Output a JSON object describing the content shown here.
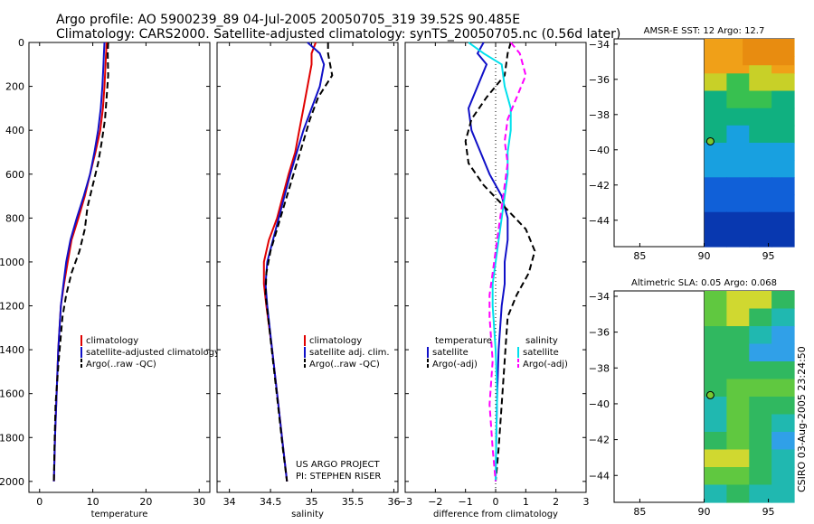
{
  "header": {
    "line1": "Argo profile: AO 5900239_89 04-Jul-2005 20050705_319 39.52S 90.485E",
    "line2": "Climatology: CARS2000. Satellite-adjusted climatology: synTS_20050705.nc (0.56d later)"
  },
  "side_label": "CSIRO 03-Aug-2005 23:24:50",
  "colors": {
    "red": "#e00000",
    "blue": "#1010c8",
    "black": "#000000",
    "cyan": "#00e0ec",
    "magenta": "#ff00ff"
  },
  "chart_data": [
    {
      "id": "temperature",
      "type": "line",
      "xlabel": "temperature",
      "ylabel": "",
      "xlim": [
        -2,
        32
      ],
      "ylim": [
        2050,
        0
      ],
      "xticks": [
        0,
        10,
        20,
        30
      ],
      "yticks": [
        0,
        200,
        400,
        600,
        800,
        1000,
        1200,
        1400,
        1600,
        1800,
        2000
      ],
      "series": [
        {
          "name": "climatology",
          "color": "red",
          "dash": false,
          "x": [
            12.6,
            12.5,
            12.4,
            12.2,
            11.9,
            11.4,
            10.5,
            9.5,
            8.5,
            7.3,
            6.0,
            5.3,
            4.6,
            4.0,
            3.5,
            3.2,
            2.9,
            2.7
          ],
          "y": [
            0,
            50,
            100,
            200,
            300,
            400,
            500,
            600,
            700,
            800,
            900,
            1000,
            1100,
            1200,
            1400,
            1600,
            1800,
            2000
          ]
        },
        {
          "name": "satellite-adjusted climatology",
          "color": "blue",
          "dash": false,
          "x": [
            12.2,
            12.1,
            12.0,
            11.8,
            11.5,
            11.0,
            10.3,
            9.5,
            8.3,
            7.0,
            5.8,
            5.0,
            4.5,
            4.0,
            3.5,
            3.2,
            2.9,
            2.7
          ],
          "y": [
            0,
            50,
            100,
            200,
            300,
            400,
            500,
            600,
            700,
            800,
            900,
            1000,
            1100,
            1200,
            1400,
            1600,
            1800,
            2000
          ]
        },
        {
          "name": "Argo(..raw -QC)",
          "color": "black",
          "dash": true,
          "x": [
            12.9,
            12.8,
            12.9,
            12.6,
            12.3,
            11.7,
            11.0,
            10.0,
            9.0,
            8.5,
            7.5,
            6.0,
            5.0,
            4.3,
            3.6,
            3.0,
            2.8,
            2.7
          ],
          "y": [
            0,
            50,
            150,
            250,
            350,
            450,
            550,
            650,
            750,
            850,
            950,
            1050,
            1150,
            1250,
            1450,
            1650,
            1850,
            2000
          ]
        }
      ],
      "legend": [
        "climatology",
        "satellite-adjusted climatology",
        "Argo(..raw -QC)"
      ]
    },
    {
      "id": "salinity",
      "type": "line",
      "xlabel": "salinity",
      "ylabel": "",
      "xlim": [
        33.85,
        36.05
      ],
      "ylim": [
        2050,
        0
      ],
      "xticks": [
        34,
        34.5,
        35,
        35.5,
        36
      ],
      "xtick_labels": [
        "34",
        "34.5",
        "35",
        "35.5",
        "36"
      ],
      "series": [
        {
          "name": "climatology",
          "color": "red",
          "dash": false,
          "x": [
            35.05,
            35.0,
            35.0,
            34.95,
            34.9,
            34.85,
            34.8,
            34.72,
            34.65,
            34.58,
            34.48,
            34.42,
            34.42,
            34.45,
            34.52,
            34.58,
            34.64,
            34.7
          ],
          "y": [
            0,
            50,
            100,
            200,
            300,
            400,
            500,
            600,
            700,
            800,
            900,
            1000,
            1100,
            1200,
            1400,
            1600,
            1800,
            2000
          ]
        },
        {
          "name": "satellite adj. clim.",
          "color": "blue",
          "dash": false,
          "x": [
            34.95,
            35.1,
            35.15,
            35.1,
            35.0,
            34.9,
            34.82,
            34.74,
            34.67,
            34.6,
            34.53,
            34.46,
            34.44,
            34.46,
            34.52,
            34.58,
            34.64,
            34.7
          ],
          "y": [
            0,
            50,
            100,
            200,
            300,
            400,
            500,
            600,
            700,
            800,
            900,
            1000,
            1100,
            1200,
            1400,
            1600,
            1800,
            2000
          ]
        },
        {
          "name": "Argo(..raw -QC)",
          "color": "black",
          "dash": true,
          "x": [
            35.2,
            35.2,
            35.25,
            35.08,
            34.98,
            34.9,
            34.82,
            34.74,
            34.66,
            34.58,
            34.5,
            34.45,
            34.44,
            34.47,
            34.53,
            34.59,
            34.65,
            34.7
          ],
          "y": [
            0,
            50,
            150,
            250,
            350,
            450,
            550,
            650,
            750,
            850,
            950,
            1050,
            1150,
            1250,
            1450,
            1650,
            1850,
            2000
          ]
        }
      ],
      "legend": [
        "climatology",
        "satellite adj. clim.",
        "Argo(..raw -QC)"
      ],
      "annotation": [
        "US ARGO PROJECT",
        "PI: STEPHEN RISER"
      ]
    },
    {
      "id": "difference",
      "type": "line",
      "xlabel": "difference from climatology",
      "ylabel": "",
      "xlim": [
        -3,
        3
      ],
      "ylim": [
        2050,
        0
      ],
      "xticks": [
        -3,
        -2,
        -1,
        0,
        1,
        2,
        3
      ],
      "series": [
        {
          "name": "temperature satellite",
          "color": "blue",
          "dash": false,
          "x": [
            -0.4,
            -0.6,
            -0.3,
            -0.6,
            -0.9,
            -0.8,
            -0.5,
            -0.2,
            0.2,
            0.4,
            0.4,
            0.3,
            0.3,
            0.2,
            0.1,
            0.05,
            0.02,
            0
          ],
          "y": [
            0,
            50,
            100,
            200,
            300,
            400,
            500,
            600,
            700,
            800,
            900,
            1000,
            1100,
            1200,
            1400,
            1600,
            1800,
            2000
          ]
        },
        {
          "name": "temperature Argo(-adj)",
          "color": "black",
          "dash": true,
          "x": [
            0.5,
            0.4,
            0.3,
            -0.3,
            -0.8,
            -1.0,
            -0.9,
            -0.4,
            0.3,
            1.0,
            1.3,
            1.1,
            0.7,
            0.4,
            0.3,
            0.2,
            0.1,
            0
          ],
          "y": [
            0,
            50,
            150,
            250,
            350,
            450,
            550,
            650,
            750,
            850,
            950,
            1050,
            1150,
            1250,
            1450,
            1650,
            1850,
            2000
          ]
        },
        {
          "name": "salinity satellite",
          "color": "cyan",
          "dash": false,
          "x": [
            -0.9,
            -0.4,
            0.2,
            0.3,
            0.5,
            0.5,
            0.4,
            0.4,
            0.3,
            0.2,
            0.1,
            0.0,
            -0.1,
            -0.1,
            0.0,
            0.05,
            0.02,
            0
          ],
          "y": [
            0,
            50,
            100,
            200,
            300,
            400,
            500,
            600,
            700,
            800,
            900,
            1000,
            1100,
            1200,
            1400,
            1600,
            1800,
            2000
          ]
        },
        {
          "name": "salinity Argo(-adj)",
          "color": "magenta",
          "dash": true,
          "x": [
            0.5,
            0.8,
            1.0,
            0.7,
            0.4,
            0.3,
            0.4,
            0.3,
            0.2,
            0.1,
            0.0,
            -0.1,
            -0.2,
            -0.2,
            -0.1,
            -0.2,
            -0.1,
            0
          ],
          "y": [
            0,
            50,
            150,
            250,
            350,
            450,
            550,
            650,
            750,
            850,
            950,
            1050,
            1150,
            1250,
            1450,
            1650,
            1850,
            2000
          ]
        }
      ],
      "legend_left_title": "temperature",
      "legend_left": [
        "satellite",
        "Argo(-adj)"
      ],
      "legend_right_title": "salinity",
      "legend_right": [
        "satellite",
        "Argo(-adj)"
      ]
    },
    {
      "id": "sst_map",
      "type": "heatmap",
      "title": "AMSR-E SST: 12 Argo: 12.7",
      "xlim": [
        83,
        97
      ],
      "ylim": [
        -45.5,
        -33.7
      ],
      "xticks": [
        85,
        90,
        95
      ],
      "yticks": [
        -34,
        -36,
        -38,
        -40,
        -42,
        -44
      ],
      "data_lon_start": 90,
      "point": {
        "lon": 90.485,
        "lat": -39.52
      }
    },
    {
      "id": "sla_map",
      "type": "heatmap",
      "title": "Altimetric SLA: 0.05 Argo: 0.068",
      "xlim": [
        83,
        97
      ],
      "ylim": [
        -45.5,
        -33.7
      ],
      "xticks": [
        85,
        90,
        95
      ],
      "yticks": [
        -34,
        -36,
        -38,
        -40,
        -42,
        -44
      ],
      "data_lon_start": 90,
      "point": {
        "lon": 90.485,
        "lat": -39.52
      }
    }
  ]
}
